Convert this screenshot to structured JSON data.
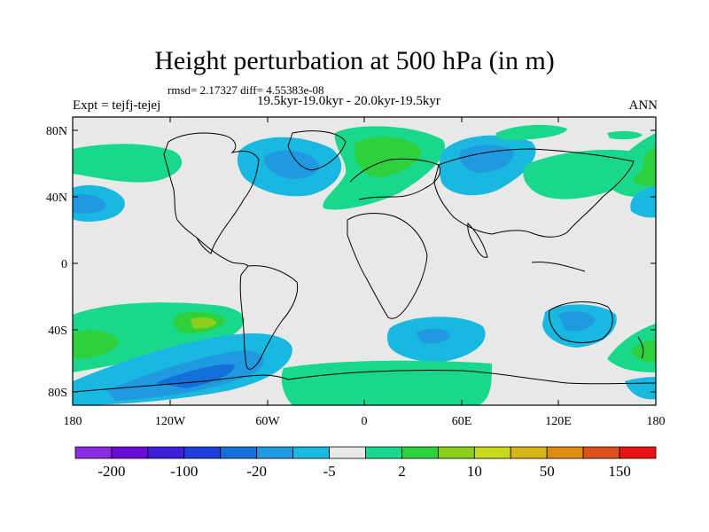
{
  "title": "Height perturbation at 500 hPa (in m)",
  "subtitle": "rmsd= 2.17327 diff= 4.55383e-08",
  "expt": "Expt = tejfj-tejej",
  "period": "19.5kyr-19.0kyr - 20.0kyr-19.5kyr",
  "season": "ANN",
  "lat_ticks": [
    "80N",
    "40N",
    "0",
    "40S",
    "80S"
  ],
  "lon_ticks": [
    "180",
    "120W",
    "60W",
    "0",
    "60E",
    "120E",
    "180"
  ],
  "colorbar": {
    "colors": [
      "#8a2be2",
      "#6a0dd6",
      "#3c1fd8",
      "#1f3fe0",
      "#1470d8",
      "#1f9ae0",
      "#19b8e0",
      "#e8e8e8",
      "#19d88c",
      "#2ed13c",
      "#8ccf1a",
      "#c8d81a",
      "#d8b414",
      "#e08c14",
      "#e0501a",
      "#e81414"
    ],
    "labels": [
      "-200",
      "-100",
      "-20",
      "-5",
      "2",
      "10",
      "50",
      "150"
    ]
  },
  "map": {
    "background": "#e8e8e8",
    "fields": [
      {
        "color": "#1f9ae0",
        "label": "negative-anomaly"
      },
      {
        "color": "#19b8e0",
        "label": "weak-negative"
      },
      {
        "color": "#19d88c",
        "label": "weak-positive"
      },
      {
        "color": "#2ed13c",
        "label": "positive-anomaly"
      },
      {
        "color": "#8ccf1a",
        "label": "strong-positive"
      }
    ]
  }
}
